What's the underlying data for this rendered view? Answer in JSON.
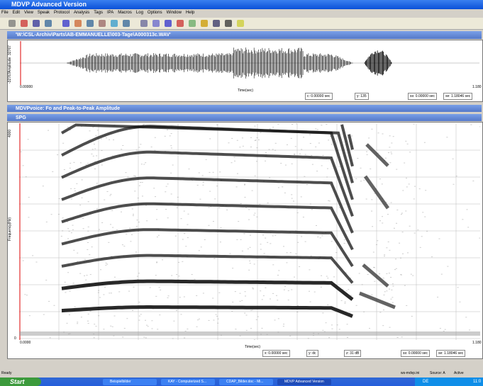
{
  "app": {
    "title": "MDVP Advanced Version",
    "menu": [
      "File",
      "Edit",
      "View",
      "Speak",
      "Protocol",
      "Analysis",
      "Tags",
      "IPA",
      "Macros",
      "Log",
      "Options",
      "Window",
      "Help"
    ]
  },
  "wave_window": {
    "title": "'W:\\CSL-Archiv\\Parts\\AB-EMMANUELLE\\003-Tage\\A000313c.WAV'",
    "y_top": "32767",
    "y_bottom": "-32767",
    "y_label": "Amplitude",
    "x_start": "0.00000",
    "x_end": "1.180",
    "x_label": "Time(sec)",
    "status": [
      "c: 0.00000 sec",
      "y: 135",
      "ss: 0.00000 sec",
      "se: 1.18046 sec"
    ]
  },
  "voice_window": {
    "title": "MDVPvoice: Fo and Peak-to-Peak Amplitude"
  },
  "spg_window": {
    "title": "SPG",
    "y_top": "4000",
    "y_bottom": "0",
    "y_label": "Frequency(Hz)",
    "x_start": "0.0000",
    "x_end": "1.180",
    "x_label": "Time(sec)",
    "status": [
      "x: 0.00000 sec",
      "y: dc",
      "z: 31 dB",
      "ss: 0.00000 sec",
      "se: 1.18046 sec"
    ]
  },
  "status_bar": {
    "left": "Ready",
    "ini": "ws-mdvp.ini",
    "source": "Source: A",
    "active": "Active"
  },
  "taskbar": {
    "start": "Start",
    "tasks": [
      "Beispielbilder",
      "KAY - Computerized S...",
      "CDAP_Bilder.doc - Mi...",
      "MDVP Advanced Version"
    ],
    "lang": "DE",
    "clock": "11:0"
  }
}
